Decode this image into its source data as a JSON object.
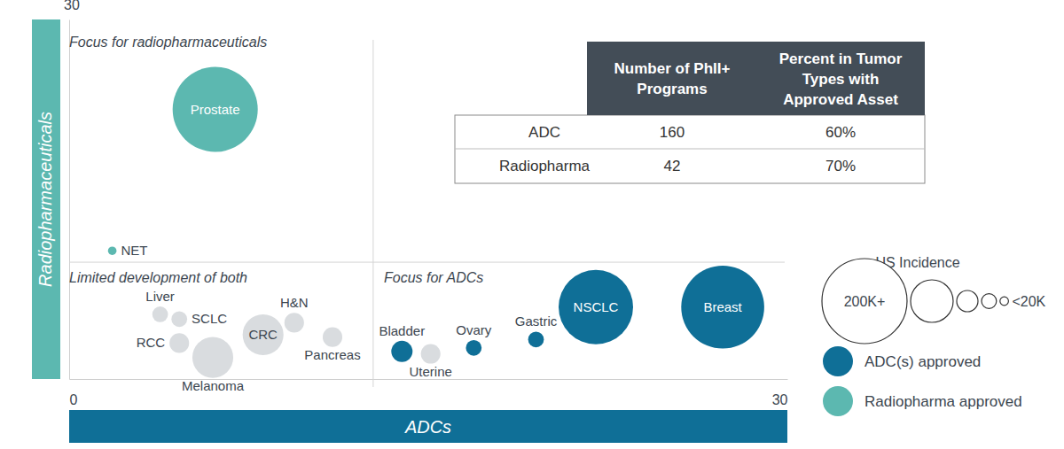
{
  "chart_data": {
    "type": "bubble",
    "x_label": "ADCs",
    "y_label": "Radiopharmaceuticals",
    "xlim": [
      0,
      30
    ],
    "ylim": [
      0,
      30
    ],
    "xticks": [
      0,
      30
    ],
    "yticks": [
      30
    ],
    "annotations": [
      "Focus for radiopharmaceuticals",
      "Limited development of both",
      "Focus for ADCs"
    ],
    "dividers": {
      "x": 12.7,
      "y": 9.75
    },
    "series": [
      {
        "name": "ADC(s) approved",
        "color": "#0f6f97",
        "labels": [
          "Bladder",
          "Ovary",
          "Gastric",
          "NSCLC",
          "Breast"
        ],
        "x": [
          13.9,
          16.9,
          19.5,
          22.0,
          27.3
        ],
        "values": [
          2.3,
          2.6,
          3.3,
          6.0,
          6.0
        ],
        "sizes": [
          50,
          37,
          37,
          175,
          195
        ]
      },
      {
        "name": "Radiopharma approved",
        "color": "#5cb8b0",
        "labels": [
          "Prostate",
          "NET"
        ],
        "x": [
          6.1,
          1.8
        ],
        "values": [
          22.5,
          10.7
        ],
        "sizes": [
          200,
          20
        ]
      },
      {
        "color": "#d9dcdf",
        "labels": [
          "Liver",
          "SCLC",
          "RCC",
          "Melanoma",
          "CRC",
          "H&N",
          "Pancreas",
          "Uterine"
        ],
        "x": [
          3.8,
          4.6,
          4.6,
          6.0,
          8.1,
          9.4,
          11.0,
          15.1
        ],
        "values": [
          5.4,
          5.0,
          3.0,
          1.8,
          3.7,
          4.7,
          3.5,
          2.1
        ],
        "sizes": [
          37,
          37,
          46,
          96,
          96,
          46,
          46,
          46
        ]
      }
    ],
    "size_legend": {
      "title": "US Incidence",
      "values": [
        200,
        100,
        50,
        35,
        20
      ],
      "labels": [
        "200K+",
        null,
        null,
        null,
        "<20K"
      ]
    }
  },
  "table": {
    "header": [
      [
        "Number of PhII+",
        "Programs"
      ],
      [
        "Percent in Tumor",
        "Types with",
        "Approved Asset"
      ]
    ],
    "rows": [
      [
        "ADC",
        160,
        "60%"
      ],
      [
        "Radiopharma",
        42,
        "70%"
      ]
    ]
  }
}
